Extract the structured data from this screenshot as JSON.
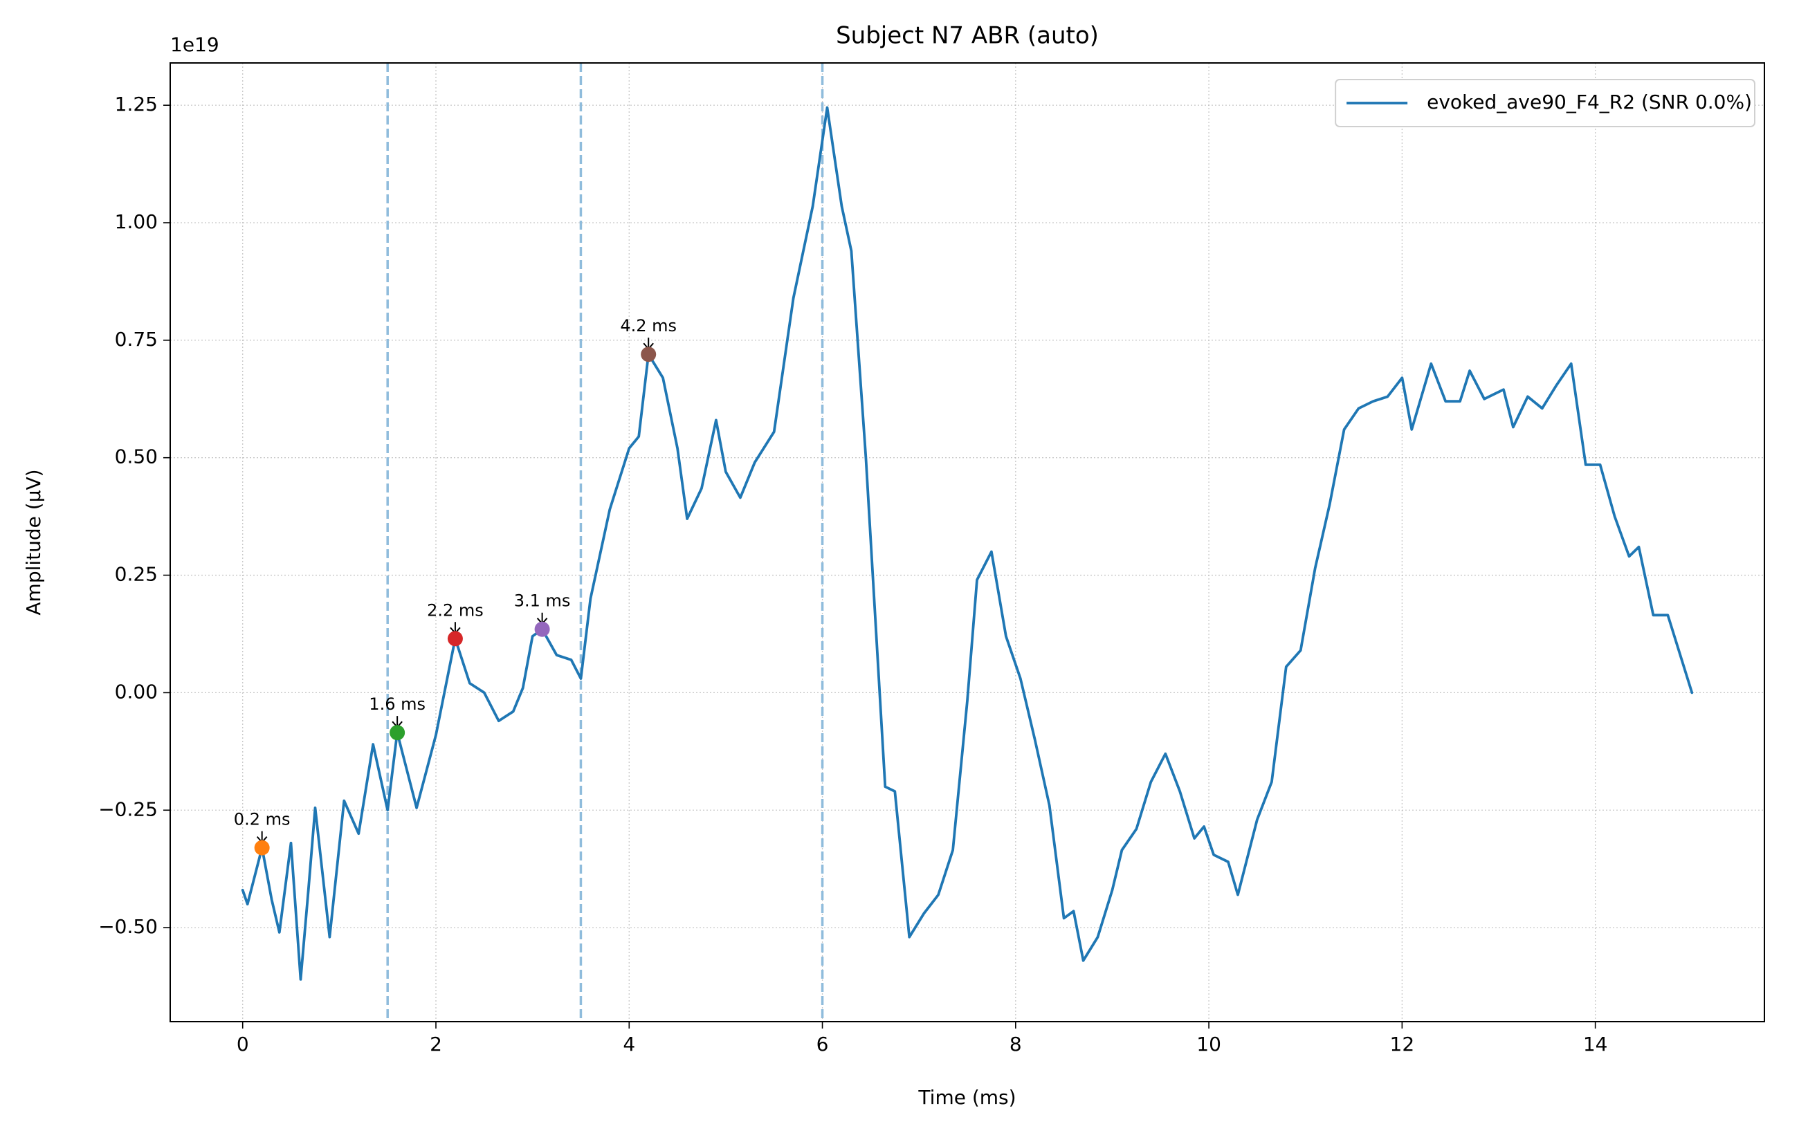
{
  "chart_data": {
    "type": "line",
    "title": "Subject N7 ABR (auto)",
    "x_label": "Time (ms)",
    "y_label": "Amplitude (µV)",
    "y_offset_label": "1e19",
    "xlim": [
      -0.75,
      15.75
    ],
    "ylim": [
      -0.7,
      1.34
    ],
    "xticks": [
      0,
      2,
      4,
      6,
      8,
      10,
      12,
      14
    ],
    "yticks": [
      {
        "value": -0.5,
        "label": "−0.50"
      },
      {
        "value": -0.25,
        "label": "−0.25"
      },
      {
        "value": 0,
        "label": "0.00"
      },
      0.25,
      {
        "value": 0.5,
        "label": "0.50"
      },
      0.75,
      {
        "value": 1.0,
        "label": "1.00"
      },
      1.25
    ],
    "grid": true,
    "legend_position": "upper right",
    "x": [
      0,
      0.05,
      0.2,
      0.3,
      0.38,
      0.5,
      0.6,
      0.68,
      0.75,
      0.9,
      1.05,
      1.2,
      1.35,
      1.5,
      1.6,
      1.8,
      2.0,
      2.2,
      2.35,
      2.5,
      2.65,
      2.8,
      2.9,
      3.0,
      3.1,
      3.25,
      3.4,
      3.5,
      3.6,
      3.8,
      4.0,
      4.1,
      4.2,
      4.35,
      4.5,
      4.6,
      4.75,
      4.9,
      5.0,
      5.15,
      5.3,
      5.5,
      5.7,
      5.9,
      6.05,
      6.2,
      6.3,
      6.45,
      6.65,
      6.75,
      6.9,
      7.05,
      7.2,
      7.35,
      7.5,
      7.6,
      7.75,
      7.9,
      8.05,
      8.2,
      8.35,
      8.5,
      8.6,
      8.7,
      8.85,
      9.0,
      9.1,
      9.25,
      9.4,
      9.55,
      9.7,
      9.85,
      9.95,
      10.05,
      10.2,
      10.3,
      10.5,
      10.65,
      10.8,
      10.95,
      11.1,
      11.25,
      11.4,
      11.55,
      11.7,
      11.85,
      12.0,
      12.1,
      12.3,
      12.45,
      12.6,
      12.7,
      12.85,
      13.05,
      13.15,
      13.3,
      13.45,
      13.6,
      13.75,
      13.9,
      14.05,
      14.2,
      14.35,
      14.45,
      14.6,
      14.75,
      15.0
    ],
    "series": [
      {
        "name": "evoked_ave90_F4_R2 (SNR 0.0%)",
        "color": "#1f77b4",
        "values": [
          -0.42,
          -0.45,
          -0.33,
          -0.44,
          -0.51,
          -0.32,
          -0.61,
          -0.42,
          -0.245,
          -0.52,
          -0.23,
          -0.3,
          -0.11,
          -0.25,
          -0.085,
          -0.245,
          -0.09,
          0.115,
          0.02,
          0.0,
          -0.06,
          -0.04,
          0.01,
          0.12,
          0.135,
          0.08,
          0.07,
          0.03,
          0.2,
          0.39,
          0.52,
          0.545,
          0.72,
          0.67,
          0.52,
          0.37,
          0.435,
          0.58,
          0.47,
          0.415,
          0.49,
          0.555,
          0.84,
          1.035,
          1.245,
          1.035,
          0.94,
          0.5,
          -0.2,
          -0.21,
          -0.52,
          -0.47,
          -0.43,
          -0.335,
          -0.017,
          0.24,
          0.3,
          0.12,
          0.03,
          -0.1,
          -0.24,
          -0.48,
          -0.465,
          -0.57,
          -0.52,
          -0.42,
          -0.335,
          -0.29,
          -0.19,
          -0.13,
          -0.21,
          -0.31,
          -0.285,
          -0.345,
          -0.36,
          -0.43,
          -0.27,
          -0.19,
          0.055,
          0.09,
          0.265,
          0.4,
          0.56,
          0.605,
          0.62,
          0.63,
          0.67,
          0.56,
          0.7,
          0.62,
          0.62,
          0.685,
          0.625,
          0.645,
          0.565,
          0.63,
          0.605,
          0.655,
          0.7,
          0.485,
          0.485,
          0.375,
          0.29,
          0.31,
          0.165,
          0.165,
          0.0
        ]
      }
    ],
    "peaks": [
      {
        "x": 0.2,
        "y": -0.33,
        "label": "0.2 ms",
        "color": "#ff7f0e"
      },
      {
        "x": 1.6,
        "y": -0.085,
        "label": "1.6 ms",
        "color": "#2ca02c"
      },
      {
        "x": 2.2,
        "y": 0.115,
        "label": "2.2 ms",
        "color": "#d62728"
      },
      {
        "x": 3.1,
        "y": 0.135,
        "label": "3.1 ms",
        "color": "#9467bd"
      },
      {
        "x": 4.2,
        "y": 0.72,
        "label": "4.2 ms",
        "color": "#8c564b"
      }
    ],
    "vlines": [
      1.5,
      3.5,
      6.0
    ],
    "vline_color": "#8fbcdc"
  }
}
